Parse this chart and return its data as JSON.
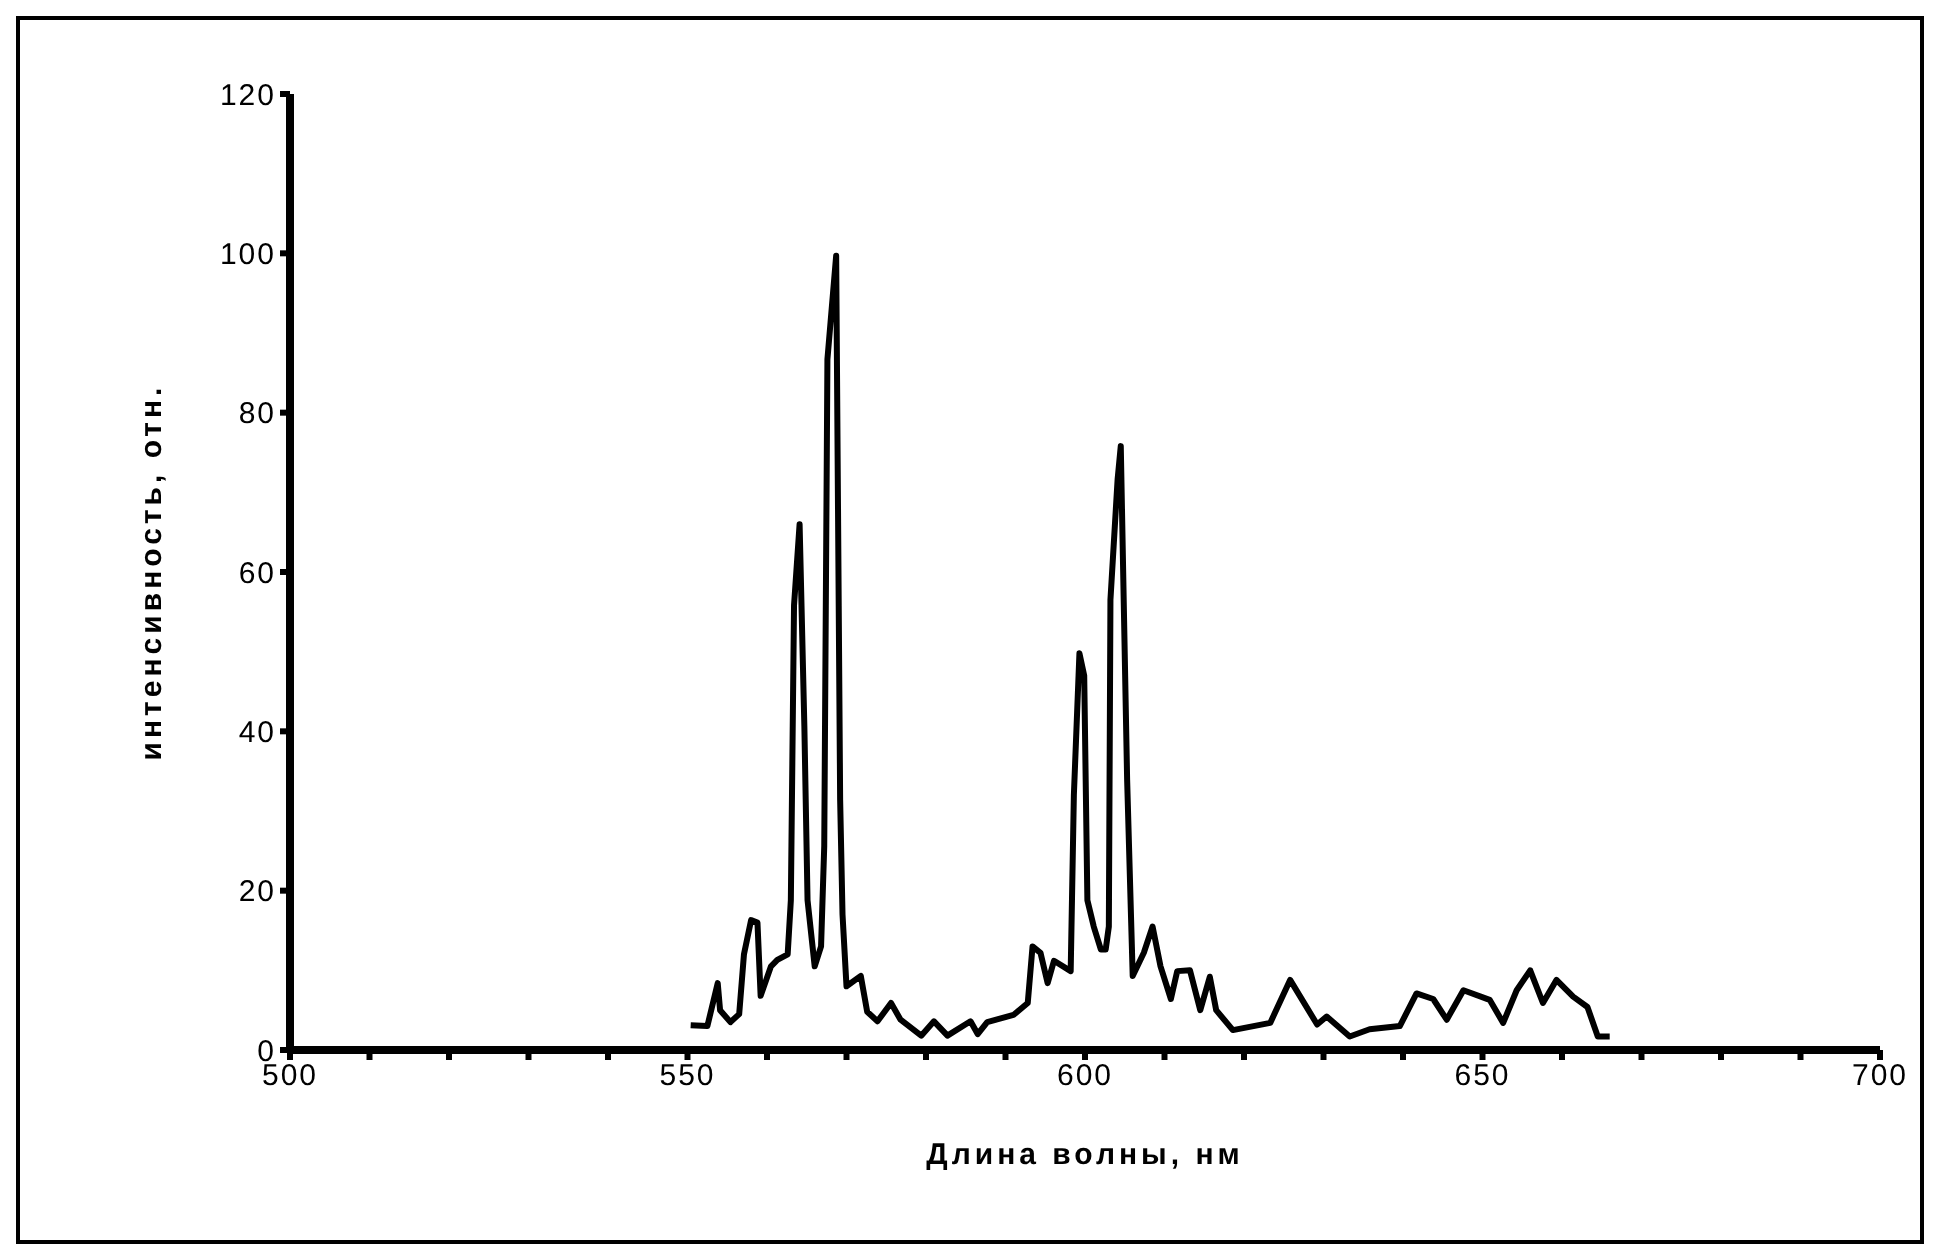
{
  "chart_data": {
    "type": "line",
    "xlabel": "Длина волны, нм",
    "ylabel": "интенсивность, отн.",
    "x": [
      550.4,
      552.5,
      553.8,
      554.1,
      555.4,
      556.5,
      557.1,
      558,
      558.8,
      559.2,
      560.5,
      561.3,
      562.6,
      563,
      563.4,
      564.1,
      564.7,
      565.1,
      566,
      566.8,
      567.2,
      567.6,
      568.7,
      569.2,
      569.5,
      570,
      571.8,
      572.6,
      573.9,
      575.6,
      576.8,
      579.4,
      581,
      582.7,
      585.6,
      586.5,
      587.7,
      591,
      592.8,
      593.4,
      594.4,
      595.3,
      596.1,
      598.2,
      598.6,
      599.3,
      599.9,
      600.3,
      601.1,
      602,
      602.6,
      603,
      603.2,
      604.1,
      604.5,
      605.3,
      606,
      607.4,
      608.5,
      609.5,
      610.8,
      611.6,
      613.2,
      614.5,
      615.7,
      616.5,
      618.6,
      623.3,
      625.8,
      629.2,
      630.4,
      633.3,
      635.8,
      639.6,
      641.7,
      643.8,
      645.5,
      647.6,
      650.9,
      652.6,
      654.3,
      656,
      657.6,
      659.3,
      661.4,
      663.2,
      664.5,
      666
    ],
    "series": [
      {
        "color": "#000000",
        "values": [
          3.1,
          3,
          8.4,
          5,
          3.5,
          4.5,
          12,
          16.3,
          16,
          6.8,
          10.5,
          11.3,
          12,
          18.8,
          55.8,
          66,
          40.6,
          18.8,
          10.5,
          13,
          25.6,
          86.7,
          99.7,
          31.4,
          17,
          8,
          9.3,
          4.8,
          3.6,
          5.9,
          3.8,
          1.8,
          3.6,
          1.8,
          3.6,
          2,
          3.5,
          4.4,
          5.9,
          13,
          12.2,
          8.4,
          11.2,
          9.9,
          32,
          49.8,
          47,
          18.8,
          15.5,
          12.6,
          12.6,
          15.5,
          56.5,
          71.6,
          75.8,
          33.9,
          9.3,
          12.2,
          15.5,
          10.5,
          6.4,
          9.9,
          10,
          5,
          9.2,
          5,
          2.5,
          3.4,
          8.8,
          3.2,
          4.2,
          1.7,
          2.6,
          3,
          7.1,
          6.4,
          3.8,
          7.5,
          6.3,
          3.4,
          7.5,
          10,
          5.9,
          8.8,
          6.7,
          5.4,
          1.7,
          1.7
        ]
      }
    ],
    "xlim": [
      500,
      700
    ],
    "ylim": [
      0,
      120
    ],
    "xticks": [
      500,
      {
        "value": 510,
        "label": null
      },
      {
        "value": 520,
        "label": null
      },
      {
        "value": 530,
        "label": null
      },
      {
        "value": 540,
        "label": null
      },
      550,
      {
        "value": 560,
        "label": null
      },
      {
        "value": 570,
        "label": null
      },
      {
        "value": 580,
        "label": null
      },
      {
        "value": 590,
        "label": null
      },
      600,
      {
        "value": 610,
        "label": null
      },
      {
        "value": 620,
        "label": null
      },
      {
        "value": 630,
        "label": null
      },
      {
        "value": 640,
        "label": null
      },
      650,
      {
        "value": 660,
        "label": null
      },
      {
        "value": 670,
        "label": null
      },
      {
        "value": 680,
        "label": null
      },
      {
        "value": 690,
        "label": null
      },
      700
    ],
    "yticks": [
      0,
      20,
      40,
      60,
      80,
      100,
      120
    ],
    "grid": false,
    "legend": false,
    "marker": "none",
    "line_style": "solid"
  }
}
